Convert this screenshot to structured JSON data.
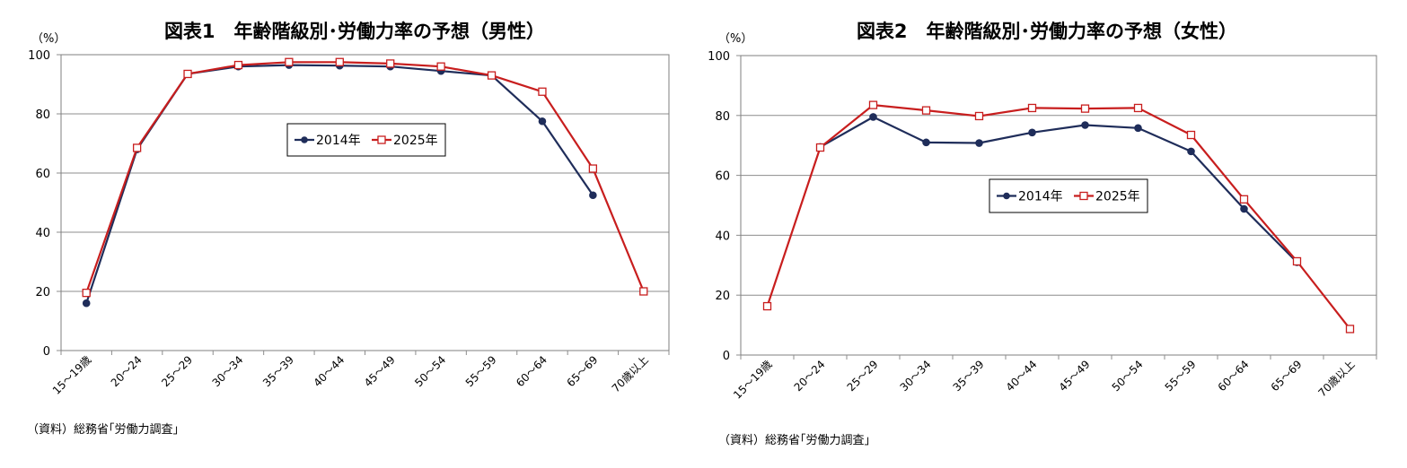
{
  "chart_data": [
    {
      "type": "line",
      "title": "図表1　年齢階級別･労働力率の予想（男性）",
      "ylabel": "（%）",
      "ylim": [
        0,
        100
      ],
      "yticks": [
        0,
        20,
        40,
        60,
        80,
        100
      ],
      "grid": true,
      "legend_position": "center",
      "categories": [
        "15～19歳",
        "20～24",
        "25～29",
        "30～34",
        "35～39",
        "40～44",
        "45～49",
        "50～54",
        "55～59",
        "60～64",
        "65～69",
        "70歳以上"
      ],
      "series": [
        {
          "name": "2014年",
          "color": "#1f2d5a",
          "marker": "filled-circle",
          "values": [
            16,
            68,
            93.5,
            96,
            96.5,
            96.3,
            96,
            94.5,
            93,
            77.5,
            52.5,
            null
          ]
        },
        {
          "name": "2025年",
          "color": "#c81e1e",
          "marker": "open-square",
          "values": [
            19.5,
            68.5,
            93.5,
            96.5,
            97.5,
            97.5,
            97,
            96,
            93,
            87.5,
            61.5,
            20
          ]
        }
      ],
      "source": "（資料）総務省｢労働力調査｣"
    },
    {
      "type": "line",
      "title": "図表2　年齢階級別･労働力率の予想（女性）",
      "ylabel": "（%）",
      "ylim": [
        0,
        100
      ],
      "yticks": [
        0,
        20,
        40,
        60,
        80,
        100
      ],
      "grid": true,
      "legend_position": "center",
      "categories": [
        "15～19歳",
        "20～24",
        "25～29",
        "30～34",
        "35～39",
        "40～44",
        "45～49",
        "50～54",
        "55～59",
        "60～64",
        "65～69",
        "70歳以上"
      ],
      "series": [
        {
          "name": "2014年",
          "color": "#1f2d5a",
          "marker": "filled-circle",
          "values": [
            null,
            69.5,
            79.5,
            71,
            70.8,
            74.3,
            76.8,
            75.8,
            68,
            48.8,
            31,
            null
          ]
        },
        {
          "name": "2025年",
          "color": "#c81e1e",
          "marker": "open-square",
          "values": [
            16.3,
            69.3,
            83.5,
            81.7,
            79.8,
            82.5,
            82.3,
            82.5,
            73.5,
            52,
            31.3,
            8.7
          ]
        }
      ],
      "source": "（資料）総務省｢労働力調査｣"
    }
  ]
}
